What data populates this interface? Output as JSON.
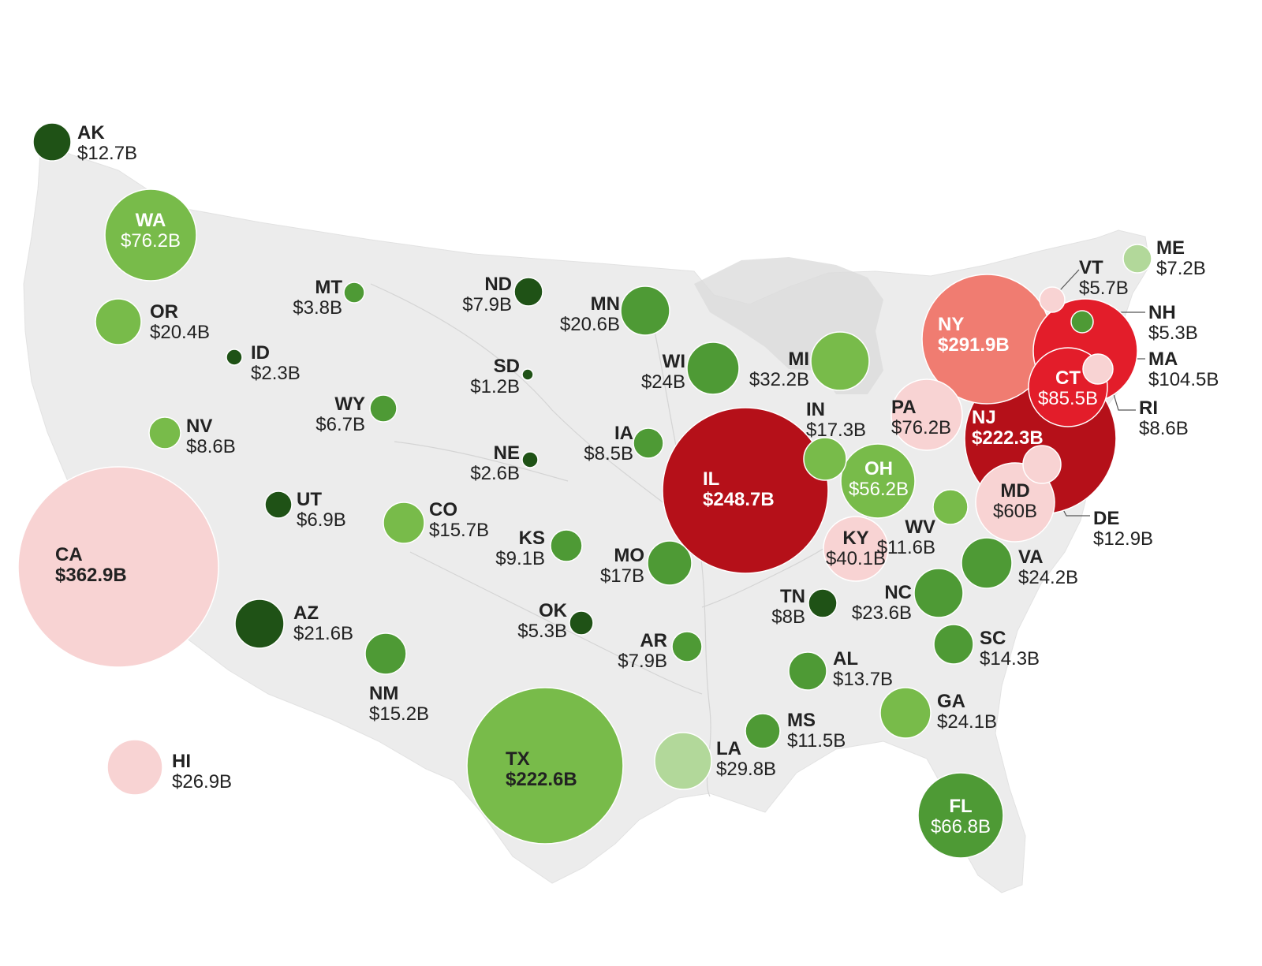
{
  "colors": {
    "dark_green": "#1f5216",
    "green": "#4e9a35",
    "light_green": "#78bb4a",
    "pale_green": "#b2d89a",
    "pale_pink": "#f8d3d3",
    "salmon": "#f07c71",
    "bright_red": "#e31d2a",
    "dark_red": "#b51019",
    "land": "#ececec",
    "great_lakes": "#dcdcdc"
  },
  "states": [
    {
      "abbr": "AK",
      "value": "$12.7B",
      "color": "dark_green"
    },
    {
      "abbr": "WA",
      "value": "$76.2B",
      "color": "light_green"
    },
    {
      "abbr": "OR",
      "value": "$20.4B",
      "color": "light_green"
    },
    {
      "abbr": "CA",
      "value": "$362.9B",
      "color": "pale_pink"
    },
    {
      "abbr": "HI",
      "value": "$26.9B",
      "color": "pale_pink"
    },
    {
      "abbr": "ID",
      "value": "$2.3B",
      "color": "dark_green"
    },
    {
      "abbr": "NV",
      "value": "$8.6B",
      "color": "light_green"
    },
    {
      "abbr": "MT",
      "value": "$3.8B",
      "color": "green"
    },
    {
      "abbr": "WY",
      "value": "$6.7B",
      "color": "green"
    },
    {
      "abbr": "UT",
      "value": "$6.9B",
      "color": "dark_green"
    },
    {
      "abbr": "AZ",
      "value": "$21.6B",
      "color": "dark_green"
    },
    {
      "abbr": "CO",
      "value": "$15.7B",
      "color": "light_green"
    },
    {
      "abbr": "NM",
      "value": "$15.2B",
      "color": "green"
    },
    {
      "abbr": "ND",
      "value": "$7.9B",
      "color": "dark_green"
    },
    {
      "abbr": "SD",
      "value": "$1.2B",
      "color": "dark_green"
    },
    {
      "abbr": "NE",
      "value": "$2.6B",
      "color": "dark_green"
    },
    {
      "abbr": "KS",
      "value": "$9.1B",
      "color": "green"
    },
    {
      "abbr": "OK",
      "value": "$5.3B",
      "color": "dark_green"
    },
    {
      "abbr": "TX",
      "value": "$222.6B",
      "color": "light_green"
    },
    {
      "abbr": "MN",
      "value": "$20.6B",
      "color": "green"
    },
    {
      "abbr": "IA",
      "value": "$8.5B",
      "color": "green"
    },
    {
      "abbr": "MO",
      "value": "$17B",
      "color": "green"
    },
    {
      "abbr": "AR",
      "value": "$7.9B",
      "color": "green"
    },
    {
      "abbr": "LA",
      "value": "$29.8B",
      "color": "pale_green"
    },
    {
      "abbr": "WI",
      "value": "$24B",
      "color": "green"
    },
    {
      "abbr": "IL",
      "value": "$248.7B",
      "color": "dark_red"
    },
    {
      "abbr": "MI",
      "value": "$32.2B",
      "color": "light_green"
    },
    {
      "abbr": "IN",
      "value": "$17.3B",
      "color": "light_green"
    },
    {
      "abbr": "OH",
      "value": "$56.2B",
      "color": "light_green"
    },
    {
      "abbr": "KY",
      "value": "$40.1B",
      "color": "pale_pink"
    },
    {
      "abbr": "TN",
      "value": "$8B",
      "color": "dark_green"
    },
    {
      "abbr": "MS",
      "value": "$11.5B",
      "color": "green"
    },
    {
      "abbr": "AL",
      "value": "$13.7B",
      "color": "green"
    },
    {
      "abbr": "GA",
      "value": "$24.1B",
      "color": "light_green"
    },
    {
      "abbr": "FL",
      "value": "$66.8B",
      "color": "green"
    },
    {
      "abbr": "SC",
      "value": "$14.3B",
      "color": "green"
    },
    {
      "abbr": "NC",
      "value": "$23.6B",
      "color": "green"
    },
    {
      "abbr": "VA",
      "value": "$24.2B",
      "color": "green"
    },
    {
      "abbr": "WV",
      "value": "$11.6B",
      "color": "light_green"
    },
    {
      "abbr": "PA",
      "value": "$76.2B",
      "color": "pale_pink"
    },
    {
      "abbr": "NY",
      "value": "$291.9B",
      "color": "salmon"
    },
    {
      "abbr": "NJ",
      "value": "$222.3B",
      "color": "dark_red"
    },
    {
      "abbr": "MA",
      "value": "$104.5B",
      "color": "bright_red"
    },
    {
      "abbr": "CT",
      "value": "$85.5B",
      "color": "bright_red"
    },
    {
      "abbr": "MD",
      "value": "$60B",
      "color": "pale_pink"
    },
    {
      "abbr": "DE",
      "value": "$12.9B",
      "color": "pale_pink"
    },
    {
      "abbr": "RI",
      "value": "$8.6B",
      "color": "pale_pink"
    },
    {
      "abbr": "VT",
      "value": "$5.7B",
      "color": "pale_pink"
    },
    {
      "abbr": "NH",
      "value": "$5.3B",
      "color": "green"
    },
    {
      "abbr": "ME",
      "value": "$7.2B",
      "color": "pale_green"
    }
  ]
}
